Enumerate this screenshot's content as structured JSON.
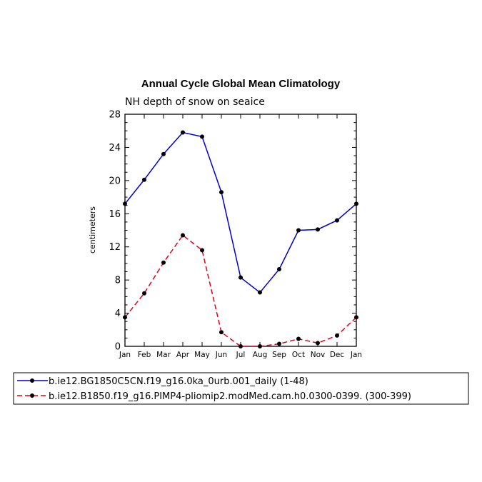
{
  "chart_data": {
    "type": "line",
    "title": "Annual Cycle Global Mean Climatology",
    "subtitle": "NH depth of snow on seaice",
    "xlabel": "",
    "ylabel": "centimeters",
    "ylim": [
      0,
      28
    ],
    "yticks": [
      0,
      4,
      8,
      12,
      16,
      20,
      24,
      28
    ],
    "categories": [
      "Jan",
      "Feb",
      "Mar",
      "Apr",
      "May",
      "Jun",
      "Jul",
      "Aug",
      "Sep",
      "Oct",
      "Nov",
      "Dec",
      "Jan"
    ],
    "grid": false,
    "legend_position": "bottom",
    "series": [
      {
        "name": "b.ie12.BG1850C5CN.f19_g16.0ka_0urb.001_daily (1-48)",
        "color": "#0000cc",
        "dash": "solid",
        "values": [
          17.2,
          20.1,
          23.2,
          25.8,
          25.3,
          18.6,
          8.3,
          6.5,
          9.3,
          14.0,
          14.1,
          15.2,
          17.2
        ]
      },
      {
        "name": "b.ie12.B1850.f19_g16.PIMP4-pliomip2.modMed.cam.h0.0300-0399. (300-399)",
        "color": "#e0001a",
        "dash": "dashed",
        "values": [
          3.5,
          6.4,
          10.1,
          13.4,
          11.6,
          1.7,
          0.0,
          0.0,
          0.3,
          0.9,
          0.4,
          1.3,
          3.5
        ]
      }
    ]
  }
}
